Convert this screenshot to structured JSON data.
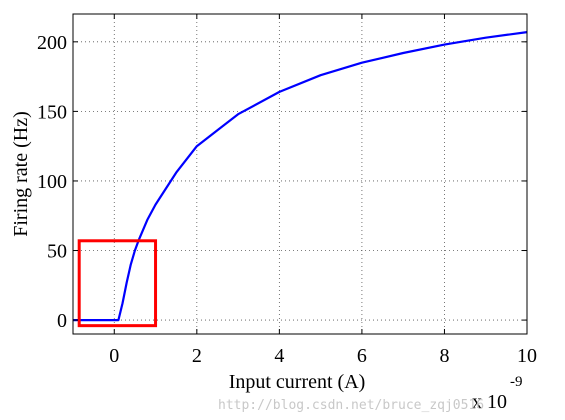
{
  "chart_data": {
    "type": "line",
    "xlabel": "Input current (A)",
    "ylabel": "Firing rate (Hz)",
    "x_multiplier_label": "x 10",
    "x_multiplier_exponent": "-9",
    "xlim": [
      -1,
      10
    ],
    "ylim": [
      -10,
      220
    ],
    "x_ticks": [
      0,
      2,
      4,
      6,
      8,
      10
    ],
    "y_ticks": [
      0,
      50,
      100,
      150,
      200
    ],
    "x_tick_labels": [
      "0",
      "2",
      "4",
      "6",
      "8",
      "10"
    ],
    "y_tick_labels": [
      "0",
      "50",
      "100",
      "150",
      "200"
    ],
    "grid": true,
    "series": [
      {
        "color": "#0000ff",
        "x": [
          -1,
          -0.5,
          0,
          0.1,
          0.2,
          0.3,
          0.4,
          0.5,
          0.6,
          0.8,
          1,
          1.5,
          2,
          3,
          4,
          5,
          6,
          7,
          8,
          9,
          10
        ],
        "y": [
          0,
          0,
          0,
          0,
          12,
          27,
          40,
          50,
          58,
          72,
          83,
          106,
          125,
          148,
          164,
          176,
          185,
          192,
          198,
          203,
          207
        ]
      }
    ],
    "highlight_box": {
      "x0": -0.85,
      "x1": 1.0,
      "y0": -4,
      "y1": 57,
      "color": "#ff0000"
    }
  },
  "watermark": "http://blog.csdn.net/bruce_zqj0516"
}
